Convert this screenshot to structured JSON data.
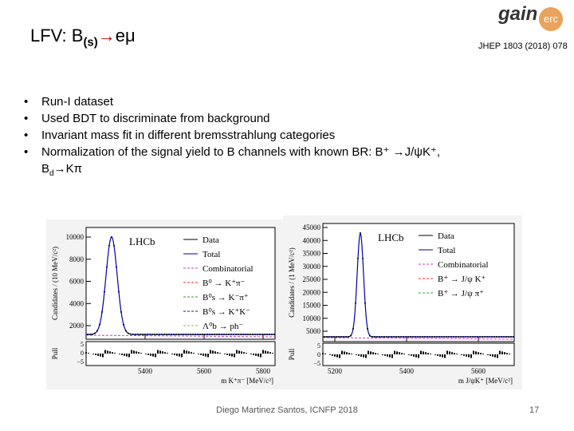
{
  "header": {
    "title": "LFV: B",
    "title_sub": "(s)",
    "title_arrow": "→",
    "title_end": "eμ",
    "logo_main": "gain",
    "logo_badge": "erc",
    "reference": "JHEP 1803 (2018) 078"
  },
  "bullets": [
    {
      "text": "Run-I dataset"
    },
    {
      "text": "Used BDT to discriminate from background"
    },
    {
      "text": "Invariant mass fit in different bremsstrahlung categories"
    },
    {
      "text": "Normalization of the signal yield to B channels with known BR: B⁺ →J/ψK⁺,",
      "cont": "B",
      "cont_sub": "d",
      "cont_end": "→Kπ"
    }
  ],
  "figures": [
    {
      "y_label": "Candidates / (10 MeV/c²)",
      "x_label": "m K⁺π⁻ [MeV/c²]",
      "experiment": "LHCb",
      "pull_label": "Pull",
      "yticks": [
        "2000",
        "4000",
        "6000",
        "8000",
        "10000"
      ],
      "xticks": [
        "5400",
        "5600",
        "5800"
      ],
      "pull_ticks": [
        "5",
        "0",
        "−5"
      ],
      "legend": [
        "Data",
        "Total",
        "Combinatorial",
        "B⁰ → K⁺π⁻",
        "B⁰s → K⁻π⁺",
        "B⁰s → K⁺K⁻",
        "Λ⁰b → ph⁻"
      ]
    },
    {
      "y_label": "Candidates / (1 MeV/c²)",
      "x_label": "m J/ψK⁺ [MeV/c²]",
      "experiment": "LHCb",
      "pull_label": "Pull",
      "yticks": [
        "5000",
        "10000",
        "15000",
        "20000",
        "25000",
        "30000",
        "35000",
        "40000",
        "45000"
      ],
      "xticks": [
        "5200",
        "5400",
        "5600"
      ],
      "pull_ticks": [
        "5",
        "0",
        "−5"
      ],
      "legend": [
        "Data",
        "Total",
        "Combinatorial",
        "B⁺ → J/ψ K⁺",
        "B⁺ → J/ψ π⁺"
      ]
    }
  ],
  "footer": {
    "author": "Diego Martinez Santos, ICNFP 2018",
    "page": "17"
  }
}
